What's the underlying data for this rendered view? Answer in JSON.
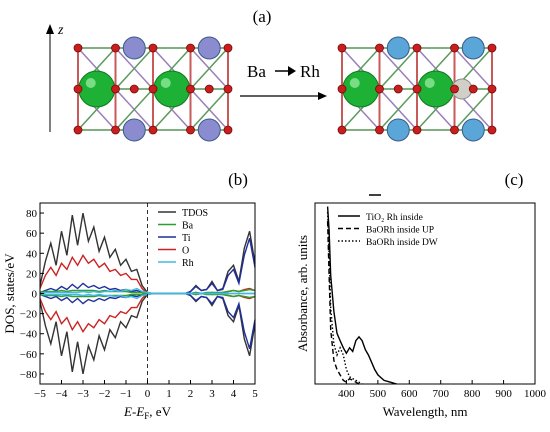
{
  "panels": {
    "a": {
      "label": "(a)",
      "axis_label": "z",
      "transition": {
        "from": "Ba",
        "to": "Rh"
      }
    },
    "b": {
      "label": "(b)"
    },
    "c": {
      "label": "(c)"
    }
  },
  "colors": {
    "TDOS": "#333333",
    "Ba": "#2e9e2e",
    "Ti": "#1f2f9f",
    "O": "#cc2222",
    "Rh": "#44b7e6",
    "ba_atom": "#1db135",
    "ti_atom": "#8a8ccf",
    "o_atom": "#c81e1e",
    "rh_atom": "#5aa6d8",
    "sr_atom": "#d0d0c8"
  },
  "chart_data": [
    {
      "type": "line",
      "title": "",
      "xlabel": "E-E_F, eV",
      "ylabel": "DOS, states/eV",
      "xlim": [
        -5,
        5
      ],
      "ylim": [
        -90,
        90
      ],
      "xticks": [
        -5,
        -4,
        -3,
        -2,
        -1,
        0,
        1,
        2,
        3,
        4,
        5
      ],
      "yticks": [
        -80,
        -60,
        -40,
        -20,
        0,
        20,
        40,
        60,
        80
      ],
      "grid": false,
      "legend": "top-right",
      "fermi_line_x": 0,
      "x": [
        -5.0,
        -4.75,
        -4.5,
        -4.25,
        -4.0,
        -3.75,
        -3.5,
        -3.25,
        -3.0,
        -2.75,
        -2.5,
        -2.25,
        -2.0,
        -1.75,
        -1.5,
        -1.25,
        -1.0,
        -0.75,
        -0.5,
        -0.25,
        0.0,
        0.25,
        0.5,
        0.75,
        1.0,
        1.25,
        1.5,
        1.75,
        2.0,
        2.25,
        2.5,
        2.75,
        3.0,
        3.25,
        3.5,
        3.75,
        4.0,
        4.25,
        4.5,
        4.75,
        5.0
      ],
      "series": [
        {
          "name": "TDOS",
          "up": [
            8,
            32,
            50,
            28,
            62,
            38,
            78,
            48,
            80,
            52,
            66,
            42,
            56,
            36,
            44,
            28,
            34,
            22,
            24,
            8,
            1,
            0,
            0,
            0,
            0,
            0,
            0,
            0,
            2,
            8,
            3,
            4,
            12,
            3,
            5,
            22,
            28,
            12,
            45,
            62,
            30
          ],
          "down": [
            -8,
            -32,
            -50,
            -28,
            -62,
            -38,
            -78,
            -48,
            -80,
            -52,
            -66,
            -42,
            -56,
            -36,
            -44,
            -28,
            -34,
            -22,
            -24,
            -8,
            -1,
            0,
            0,
            0,
            0,
            0,
            0,
            0,
            -2,
            -8,
            -3,
            -4,
            -12,
            -3,
            -5,
            -22,
            -28,
            -12,
            -45,
            -62,
            -30
          ]
        },
        {
          "name": "Ba",
          "up": [
            1,
            2,
            2,
            2,
            3,
            2,
            3,
            3,
            3,
            3,
            3,
            2,
            3,
            2,
            2,
            2,
            2,
            1,
            1,
            1,
            0,
            0,
            0,
            0,
            0,
            0,
            0,
            0,
            0,
            1,
            0,
            1,
            1,
            1,
            1,
            2,
            3,
            2,
            3,
            4,
            3
          ],
          "down": [
            -1,
            -2,
            -2,
            -2,
            -3,
            -2,
            -3,
            -3,
            -3,
            -3,
            -3,
            -2,
            -3,
            -2,
            -2,
            -2,
            -2,
            -1,
            -1,
            -1,
            0,
            0,
            0,
            0,
            0,
            0,
            0,
            0,
            0,
            -1,
            0,
            -1,
            -1,
            -1,
            -1,
            -2,
            -3,
            -2,
            -3,
            -4,
            -3
          ]
        },
        {
          "name": "Ti",
          "up": [
            1,
            3,
            5,
            3,
            7,
            4,
            9,
            5,
            10,
            6,
            8,
            5,
            7,
            4,
            5,
            3,
            4,
            2,
            3,
            1,
            0,
            0,
            0,
            0,
            0,
            0,
            0,
            0,
            2,
            7,
            3,
            4,
            10,
            3,
            4,
            18,
            24,
            10,
            38,
            55,
            26
          ],
          "down": [
            -1,
            -3,
            -5,
            -3,
            -7,
            -4,
            -9,
            -5,
            -10,
            -6,
            -8,
            -5,
            -7,
            -4,
            -5,
            -3,
            -4,
            -2,
            -3,
            -1,
            0,
            0,
            0,
            0,
            0,
            0,
            0,
            0,
            -2,
            -7,
            -3,
            -4,
            -10,
            -3,
            -4,
            -18,
            -24,
            -10,
            -38,
            -55,
            -26
          ]
        },
        {
          "name": "O",
          "up": [
            5,
            18,
            26,
            18,
            30,
            24,
            36,
            28,
            38,
            30,
            34,
            26,
            30,
            22,
            24,
            18,
            20,
            14,
            14,
            5,
            0,
            0,
            0,
            0,
            0,
            0,
            0,
            0,
            0,
            1,
            0,
            0,
            1,
            0,
            1,
            2,
            3,
            2,
            4,
            5,
            3
          ],
          "down": [
            -5,
            -18,
            -26,
            -18,
            -30,
            -24,
            -36,
            -28,
            -38,
            -30,
            -34,
            -26,
            -30,
            -22,
            -24,
            -18,
            -20,
            -14,
            -14,
            -5,
            0,
            0,
            0,
            0,
            0,
            0,
            0,
            0,
            0,
            -1,
            0,
            0,
            -1,
            0,
            -1,
            -2,
            -3,
            -2,
            -4,
            -5,
            -3
          ]
        },
        {
          "name": "Rh",
          "up": [
            0,
            1,
            1,
            1,
            1,
            1,
            1,
            1,
            2,
            1,
            2,
            1,
            2,
            2,
            3,
            2,
            4,
            3,
            5,
            2,
            1,
            0,
            0,
            0,
            0,
            0,
            0,
            0,
            0,
            0,
            0,
            0,
            0,
            0,
            0,
            0,
            0,
            0,
            0,
            0,
            0
          ],
          "down": [
            0,
            -1,
            -1,
            -1,
            -1,
            -1,
            -1,
            -1,
            -2,
            -1,
            -2,
            -1,
            -2,
            -2,
            -3,
            -2,
            -4,
            -3,
            -5,
            -2,
            -1,
            0,
            0,
            0,
            0,
            0,
            0,
            0,
            0,
            0,
            0,
            0,
            0,
            0,
            0,
            0,
            0,
            0,
            0,
            0,
            0
          ]
        }
      ]
    },
    {
      "type": "line",
      "title": "",
      "xlabel": "Wavelength, nm",
      "ylabel": "Absorbance, arb. units",
      "xlim": [
        300,
        1000
      ],
      "ylim": [
        0,
        1
      ],
      "xticks": [
        400,
        500,
        600,
        700,
        800,
        900,
        1000
      ],
      "grid": false,
      "legend": "top-right",
      "series": [
        {
          "name": "TiO₂ Rh inside",
          "style": "solid",
          "x": [
            340,
            345,
            350,
            360,
            370,
            380,
            390,
            400,
            410,
            420,
            430,
            440,
            450,
            460,
            470,
            480,
            490,
            500,
            520,
            540,
            560
          ],
          "y": [
            0.98,
            0.85,
            0.6,
            0.4,
            0.28,
            0.24,
            0.2,
            0.17,
            0.2,
            0.18,
            0.24,
            0.26,
            0.24,
            0.19,
            0.16,
            0.12,
            0.08,
            0.05,
            0.02,
            0.01,
            0.0
          ]
        },
        {
          "name": "BaORh inside UP",
          "style": "dashed",
          "x": [
            340,
            345,
            350,
            360,
            370,
            380,
            390,
            400,
            410,
            420,
            430,
            440,
            450
          ],
          "y": [
            0.9,
            0.6,
            0.3,
            0.13,
            0.08,
            0.05,
            0.02,
            0.01,
            0.03,
            0.02,
            0.01,
            0.0,
            0.0
          ]
        },
        {
          "name": "BaORh inside DW",
          "style": "dotted",
          "x": [
            340,
            345,
            350,
            360,
            370,
            380,
            390,
            400,
            410,
            420,
            430,
            440,
            450
          ],
          "y": [
            0.95,
            0.72,
            0.42,
            0.22,
            0.16,
            0.2,
            0.16,
            0.08,
            0.04,
            0.03,
            0.02,
            0.01,
            0.0
          ]
        }
      ]
    }
  ]
}
